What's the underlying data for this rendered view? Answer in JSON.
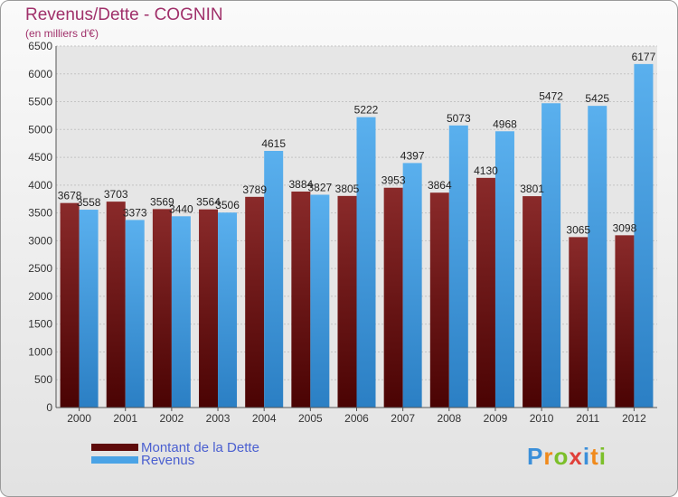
{
  "header": {
    "title": "Revenus/Dette - COGNIN",
    "subtitle": "(en milliers d'€)"
  },
  "chart_data": {
    "type": "bar",
    "categories": [
      "2000",
      "2001",
      "2002",
      "2003",
      "2004",
      "2005",
      "2006",
      "2007",
      "2008",
      "2009",
      "2010",
      "2011",
      "2012"
    ],
    "series": [
      {
        "name": "Montant de la Dette",
        "values": [
          3678,
          3703,
          3569,
          3564,
          3789,
          3884,
          3805,
          3953,
          3864,
          4130,
          3801,
          3065,
          3098
        ],
        "color": "#7a1e1e"
      },
      {
        "name": "Revenus",
        "values": [
          3558,
          3373,
          3440,
          3506,
          4615,
          3827,
          5222,
          4397,
          5073,
          4968,
          5472,
          5425,
          6177
        ],
        "color": "#4aa3e6"
      }
    ],
    "yticks": [
      0,
      500,
      1000,
      1500,
      2000,
      2500,
      3000,
      3500,
      4000,
      4500,
      5000,
      5500,
      6000,
      6500
    ],
    "ylim": [
      0,
      6500
    ],
    "grid": true
  },
  "legend": {
    "items": [
      {
        "label": "Montant de la Dette",
        "color": "#5e0a0a"
      },
      {
        "label": "Revenus",
        "color": "#4aa3e6"
      }
    ]
  },
  "logo": {
    "text": "Proxiti"
  }
}
